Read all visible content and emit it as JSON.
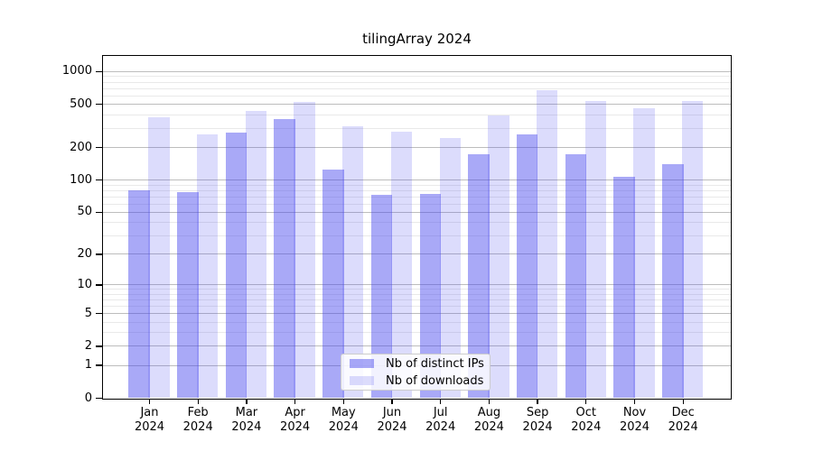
{
  "figure": {
    "background": "#ffffff"
  },
  "chart_data": {
    "type": "bar",
    "title": "tilingArray 2024",
    "categories": [
      "Jan 2024",
      "Feb 2024",
      "Mar 2024",
      "Apr 2024",
      "May 2024",
      "Jun 2024",
      "Jul 2024",
      "Aug 2024",
      "Sep 2024",
      "Oct 2024",
      "Nov 2024",
      "Dec 2024"
    ],
    "series": [
      {
        "name": "Nb of distinct IPs",
        "color": "#a9a9f7",
        "fill_rgba": "rgba(68,68,238,0.46)",
        "values": [
          80,
          77,
          270,
          360,
          125,
          72,
          73,
          172,
          263,
          172,
          106,
          140
        ]
      },
      {
        "name": "Nb of downloads",
        "color": "#dadaf9",
        "fill_rgba": "rgba(68,68,238,0.19)",
        "values": [
          380,
          260,
          430,
          520,
          310,
          280,
          245,
          390,
          670,
          530,
          460,
          530
        ]
      }
    ],
    "y_scale": "log1p",
    "y_ticks": [
      0,
      1,
      2,
      5,
      10,
      20,
      50,
      100,
      200,
      500,
      1000
    ],
    "y_minor_ticks": [
      3,
      4,
      6,
      7,
      8,
      9,
      30,
      40,
      60,
      70,
      80,
      90,
      300,
      400,
      600,
      700,
      800,
      900
    ],
    "ylim": [
      0,
      1400
    ],
    "xlabel": "",
    "ylabel": "",
    "grid": "horizontal major+minor",
    "legend_position": "inside-bottom-center"
  }
}
